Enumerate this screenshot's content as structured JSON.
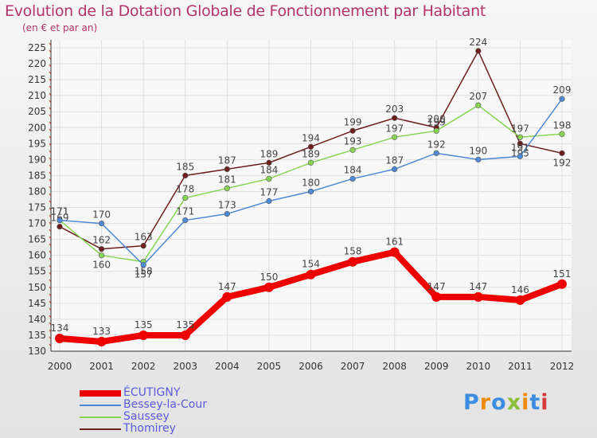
{
  "chart_data": {
    "type": "line",
    "title": "Evolution de la Dotation Globale de Fonctionnement par Habitant",
    "subtitle": "(en € et par an)",
    "xlabel": "",
    "ylabel": "",
    "x": [
      "2000",
      "2001",
      "2002",
      "2003",
      "2004",
      "2005",
      "2006",
      "2007",
      "2008",
      "2009",
      "2010",
      "2011",
      "2012"
    ],
    "ylim": [
      130,
      225
    ],
    "yticks": [
      130,
      135,
      140,
      145,
      150,
      155,
      160,
      165,
      170,
      175,
      180,
      185,
      190,
      195,
      200,
      205,
      210,
      215,
      220,
      225
    ],
    "series": [
      {
        "name": "ÉCUTIGNY",
        "color": "#ee0000",
        "values": [
          134,
          133,
          135,
          135,
          147,
          150,
          154,
          158,
          161,
          147,
          147,
          146,
          151
        ]
      },
      {
        "name": "Bessey-la-Cour",
        "color": "#4f8ad6",
        "values": [
          171,
          170,
          157,
          171,
          173,
          177,
          180,
          184,
          187,
          192,
          190,
          191,
          209
        ]
      },
      {
        "name": "Saussey",
        "color": "#88d455",
        "values": [
          171,
          160,
          158,
          178,
          181,
          184,
          189,
          193,
          197,
          199,
          207,
          197,
          198
        ]
      },
      {
        "name": "Thomirey",
        "color": "#6e1e1e",
        "values": [
          169,
          162,
          163,
          185,
          187,
          189,
          194,
          199,
          203,
          200,
          224,
          195,
          192
        ]
      }
    ]
  },
  "brand": {
    "letters": [
      "P",
      "r",
      "o",
      "x",
      "i",
      "t",
      "i"
    ],
    "colors": [
      "#3a8de0",
      "#f08a00",
      "#3a8de0",
      "#8ac03a",
      "#f08a00",
      "#3a8de0",
      "#d63a3a"
    ]
  }
}
